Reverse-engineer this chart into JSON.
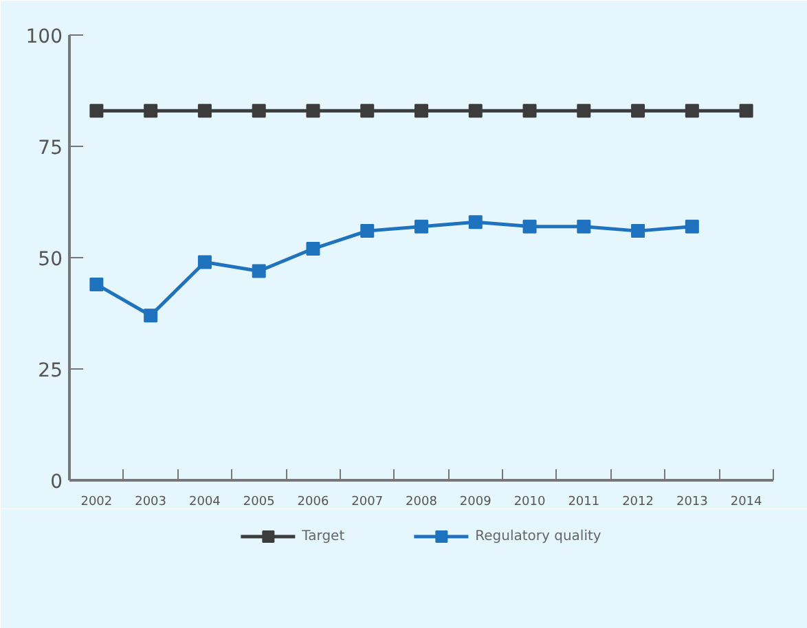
{
  "chart_data": {
    "type": "line",
    "categories": [
      "2002",
      "2003",
      "2004",
      "2005",
      "2006",
      "2007",
      "2008",
      "2009",
      "2010",
      "2011",
      "2012",
      "2013",
      "2014"
    ],
    "series": [
      {
        "name": "Target",
        "color": "#3c3c3c",
        "values": [
          83,
          83,
          83,
          83,
          83,
          83,
          83,
          83,
          83,
          83,
          83,
          83,
          83
        ]
      },
      {
        "name": "Regulatory quality",
        "color": "#1f72bd",
        "values": [
          44,
          37,
          49,
          47,
          52,
          56,
          57,
          58,
          57,
          57,
          56,
          57,
          null
        ]
      }
    ],
    "ylim": [
      0,
      100
    ],
    "yticks": [
      0,
      25,
      50,
      75,
      100
    ],
    "grid": false,
    "legend": "bottom",
    "marker": "square",
    "line_style": "solid"
  }
}
